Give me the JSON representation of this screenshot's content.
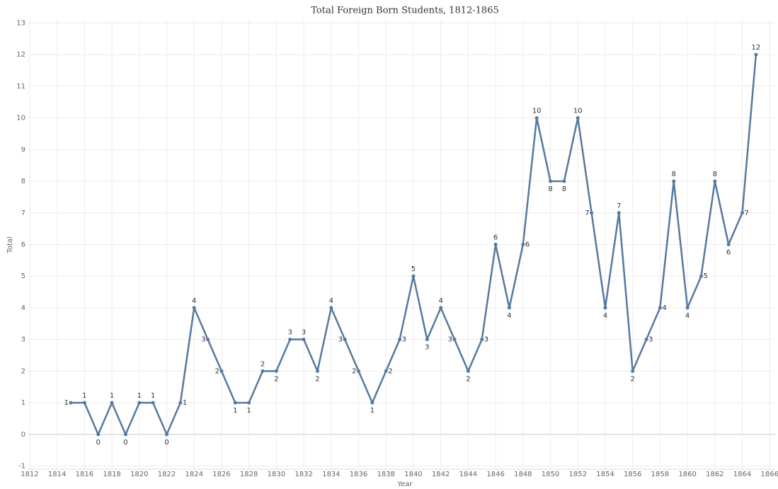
{
  "chart_data": {
    "type": "line",
    "title": "Total Foreign Born Students, 1812-1865",
    "x_label": "Year",
    "y_label": "Total",
    "x": [
      1815,
      1816,
      1817,
      1818,
      1819,
      1820,
      1821,
      1822,
      1823,
      1824,
      1825,
      1826,
      1827,
      1828,
      1829,
      1830,
      1831,
      1832,
      1833,
      1834,
      1835,
      1836,
      1837,
      1838,
      1839,
      1840,
      1841,
      1842,
      1843,
      1844,
      1845,
      1846,
      1847,
      1848,
      1849,
      1850,
      1851,
      1852,
      1853,
      1854,
      1855,
      1856,
      1857,
      1858,
      1859,
      1860,
      1861,
      1862,
      1863,
      1864,
      1865
    ],
    "series": [
      {
        "name": "Total",
        "color": "#56799f",
        "values": [
          1,
          1,
          0,
          1,
          0,
          1,
          1,
          0,
          1,
          4,
          3,
          2,
          1,
          1,
          2,
          2,
          3,
          3,
          2,
          4,
          3,
          2,
          1,
          2,
          3,
          5,
          3,
          4,
          3,
          2,
          3,
          6,
          4,
          6,
          10,
          8,
          8,
          10,
          7,
          4,
          7,
          2,
          3,
          4,
          8,
          4,
          5,
          8,
          6,
          7,
          12
        ]
      }
    ],
    "xlim": [
      1811.9,
      1866.4
    ],
    "xticks": [
      1812,
      1814,
      1816,
      1818,
      1820,
      1822,
      1824,
      1826,
      1828,
      1830,
      1832,
      1834,
      1836,
      1838,
      1840,
      1842,
      1844,
      1846,
      1848,
      1850,
      1852,
      1854,
      1856,
      1858,
      1860,
      1862,
      1864,
      1866
    ],
    "ylim": [
      -1.1,
      13.1
    ],
    "yticks": [
      -1,
      0,
      1,
      2,
      3,
      4,
      5,
      6,
      7,
      8,
      9,
      10,
      11,
      12,
      13
    ],
    "grid": true
  }
}
